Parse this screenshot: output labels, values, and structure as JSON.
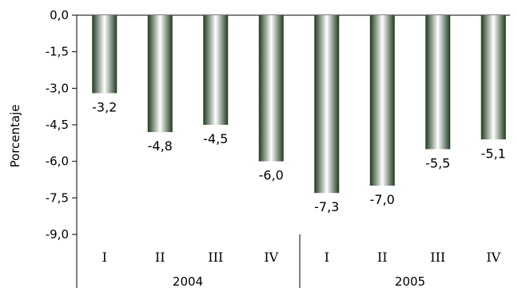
{
  "chart_data": {
    "type": "bar",
    "ylabel": "Porcentaje",
    "ylim": [
      -9.0,
      0.0
    ],
    "yticks": [
      "0,0",
      "-1,5",
      "-3,0",
      "-4,5",
      "-6,0",
      "-7,5",
      "-9,0"
    ],
    "categories": [
      "I",
      "II",
      "III",
      "IV",
      "I",
      "II",
      "III",
      "IV"
    ],
    "groups": [
      {
        "label": "2004",
        "categories": [
          "I",
          "II",
          "III",
          "IV"
        ]
      },
      {
        "label": "2005",
        "categories": [
          "I",
          "II",
          "III",
          "IV"
        ]
      }
    ],
    "values": [
      -3.2,
      -4.8,
      -4.5,
      -6.0,
      -7.3,
      -7.0,
      -5.5,
      -5.1
    ],
    "value_labels": [
      "-3,2",
      "-4,8",
      "-4,5",
      "-6,0",
      "-7,3",
      "-7,0",
      "-5,5",
      "-5,1"
    ],
    "bar_color_dark": "#1e3a1e",
    "bar_color_light": "#ffffff",
    "grid": false
  }
}
